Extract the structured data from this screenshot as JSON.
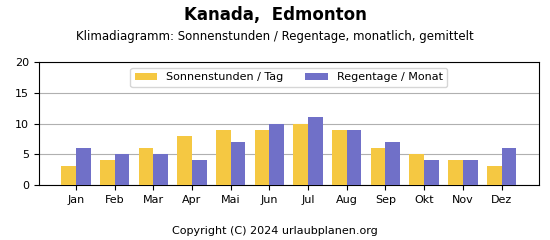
{
  "chart_data": {
    "type": "bar",
    "title": "Kanada,  Edmonton",
    "subtitle": "Klimadiagramm: Sonnenstunden / Regentage, monatlich, gemittelt",
    "categories": [
      "Jan",
      "Feb",
      "Mar",
      "Apr",
      "Mai",
      "Jun",
      "Jul",
      "Aug",
      "Sep",
      "Okt",
      "Nov",
      "Dez"
    ],
    "series": [
      {
        "name": "Sonnenstunden / Tag",
        "color": "#F5C842",
        "values": [
          3,
          4,
          6,
          8,
          9,
          9,
          10,
          9,
          6,
          5,
          4,
          3
        ]
      },
      {
        "name": "Regentage / Monat",
        "color": "#7070C8",
        "values": [
          6,
          5,
          5,
          4,
          7,
          10,
          11,
          9,
          7,
          4,
          4,
          6
        ]
      }
    ],
    "ylim": [
      0,
      20
    ],
    "yticks": [
      0,
      5,
      10,
      15,
      20
    ],
    "grid": true,
    "legend": "upper center",
    "annotations": [
      "Copyright (C) 2024 urlaubplanen.org"
    ]
  }
}
